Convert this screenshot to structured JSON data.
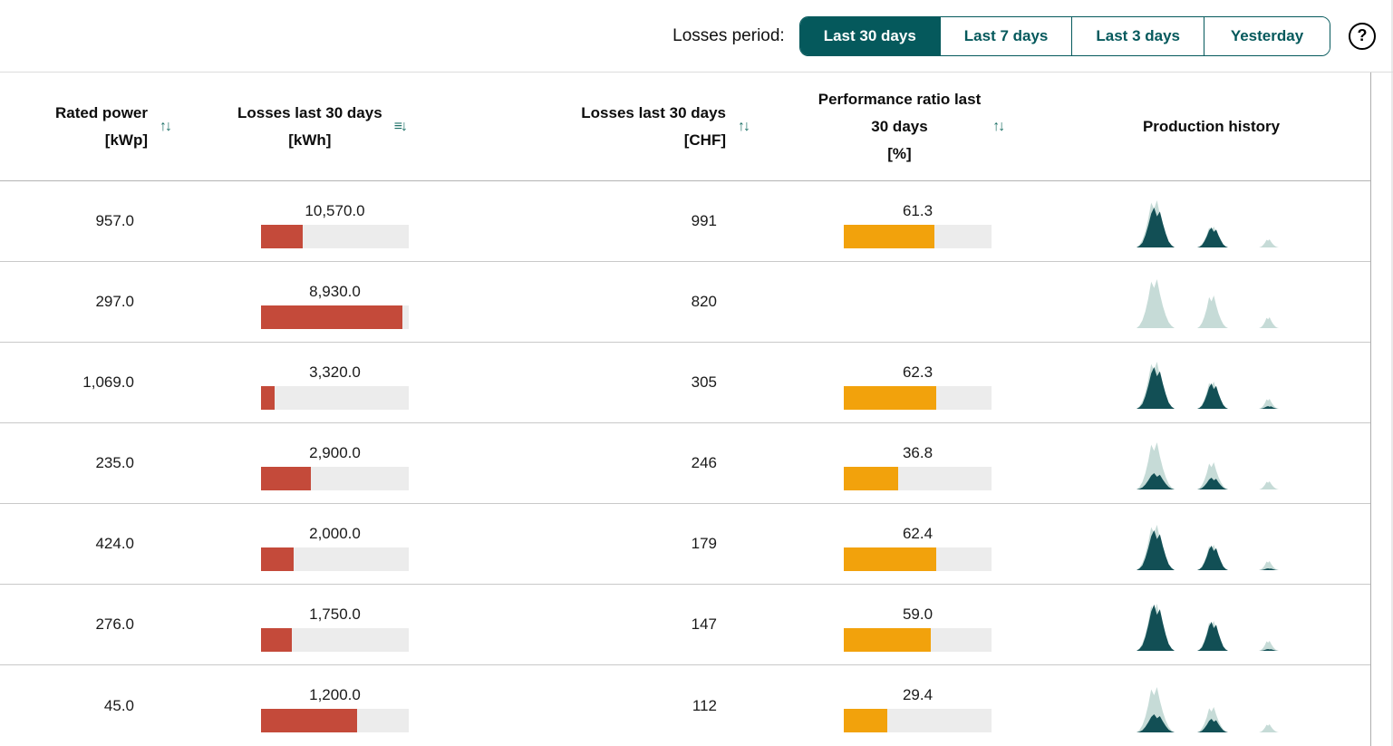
{
  "topbar": {
    "label": "Losses period:",
    "buttons": [
      {
        "label": "Last 30 days",
        "selected": true
      },
      {
        "label": "Last 7 days",
        "selected": false
      },
      {
        "label": "Last 3 days",
        "selected": false
      },
      {
        "label": "Yesterday",
        "selected": false
      }
    ],
    "help_icon": "?"
  },
  "icons": {
    "sort_both": "↑↓",
    "sort_desc_active": "≡↓"
  },
  "colors": {
    "teal": "#05595c",
    "sort_icon_teal": "#1f7268",
    "loss_bar_red": "#c44a3a",
    "pr_bar_orange": "#f2a20c",
    "bar_track_gray": "#ececec",
    "spark_dark": "#124f55",
    "spark_light": "#c6dbd7"
  },
  "table": {
    "headers": {
      "rated_power": {
        "line1": "Rated power",
        "line2": "[kWp]"
      },
      "losses_kwh": {
        "line1": "Losses last 30 days",
        "line2": "[kWh]"
      },
      "losses_chf": {
        "line1": "Losses last 30 days",
        "line2": "[CHF]"
      },
      "perf_ratio": {
        "line1": "Performance ratio last",
        "line2": "30 days",
        "line3": "[%]"
      },
      "history": {
        "line1": "Production history"
      }
    },
    "rows": [
      {
        "rated_power": "957.0",
        "losses_kwh": "10,570.0",
        "losses_kwh_pct": 28,
        "losses_chf": "991",
        "pr": "61.3",
        "pr_pct": 61.3,
        "spark": {
          "clusters": [
            {
              "light": 52,
              "dark": 44
            },
            {
              "light": 23,
              "dark": 22
            },
            {
              "light": 9,
              "dark": 0
            }
          ]
        }
      },
      {
        "rated_power": "297.0",
        "losses_kwh": "8,930.0",
        "losses_kwh_pct": 96,
        "losses_chf": "820",
        "pr": null,
        "pr_pct": null,
        "spark": {
          "clusters": [
            {
              "light": 54,
              "dark": 0
            },
            {
              "light": 36,
              "dark": 0
            },
            {
              "light": 12,
              "dark": 0
            }
          ]
        }
      },
      {
        "rated_power": "1,069.0",
        "losses_kwh": "3,320.0",
        "losses_kwh_pct": 9,
        "losses_chf": "305",
        "pr": "62.3",
        "pr_pct": 62.3,
        "spark": {
          "clusters": [
            {
              "light": 52,
              "dark": 46
            },
            {
              "light": 30,
              "dark": 28
            },
            {
              "light": 11,
              "dark": 3
            }
          ]
        }
      },
      {
        "rated_power": "235.0",
        "losses_kwh": "2,900.0",
        "losses_kwh_pct": 34,
        "losses_chf": "246",
        "pr": "36.8",
        "pr_pct": 36.8,
        "spark": {
          "clusters": [
            {
              "light": 52,
              "dark": 18
            },
            {
              "light": 30,
              "dark": 13
            },
            {
              "light": 9,
              "dark": 0
            }
          ]
        }
      },
      {
        "rated_power": "424.0",
        "losses_kwh": "2,000.0",
        "losses_kwh_pct": 22,
        "losses_chf": "179",
        "pr": "62.4",
        "pr_pct": 62.4,
        "spark": {
          "clusters": [
            {
              "light": 50,
              "dark": 44
            },
            {
              "light": 28,
              "dark": 27
            },
            {
              "light": 10,
              "dark": 2
            }
          ]
        }
      },
      {
        "rated_power": "276.0",
        "losses_kwh": "1,750.0",
        "losses_kwh_pct": 21,
        "losses_chf": "147",
        "pr": "59.0",
        "pr_pct": 59.0,
        "spark": {
          "clusters": [
            {
              "light": 52,
              "dark": 51
            },
            {
              "light": 33,
              "dark": 32
            },
            {
              "light": 11,
              "dark": 2
            }
          ]
        }
      },
      {
        "rated_power": "45.0",
        "losses_kwh": "1,200.0",
        "losses_kwh_pct": 65,
        "losses_chf": "112",
        "pr": "29.4",
        "pr_pct": 29.4,
        "spark": {
          "clusters": [
            {
              "light": 50,
              "dark": 20
            },
            {
              "light": 28,
              "dark": 15
            },
            {
              "light": 9,
              "dark": 0
            }
          ]
        }
      }
    ]
  },
  "spark_profiles": {
    "light": [
      0,
      0.05,
      0.16,
      0.34,
      0.6,
      0.95,
      0.82,
      1.0,
      0.7,
      0.45,
      0.26,
      0.12,
      0.04,
      0
    ],
    "dark": [
      0,
      0.04,
      0.12,
      0.3,
      0.55,
      0.85,
      1.0,
      0.78,
      0.9,
      0.6,
      0.35,
      0.15,
      0.05,
      0
    ]
  }
}
